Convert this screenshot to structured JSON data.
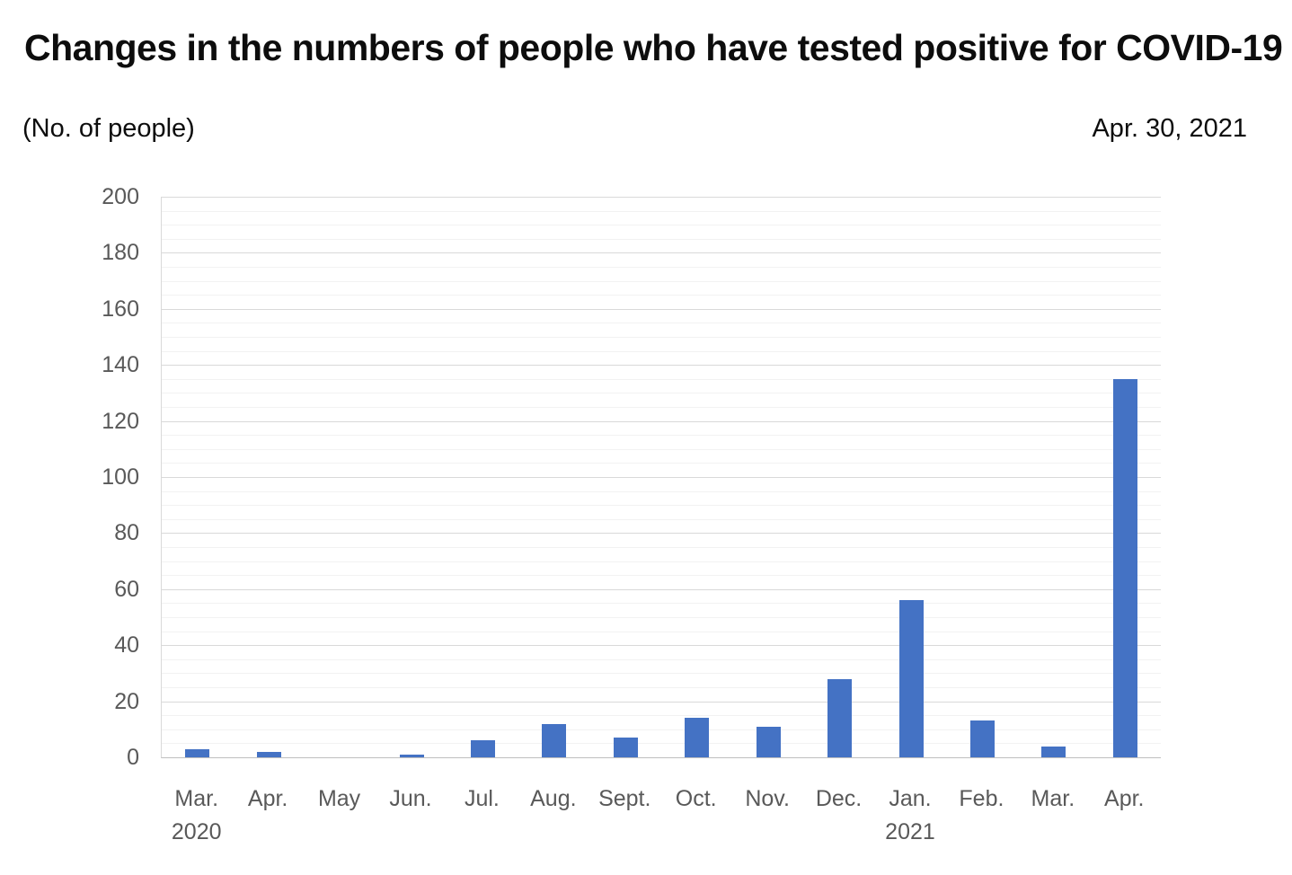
{
  "chart_data": {
    "type": "bar",
    "title": "Changes in the numbers of people who have tested positive for COVID-19",
    "unit_label": "(No. of people)",
    "date_label": "Apr. 30, 2021",
    "xlabel": "",
    "ylabel": "No. of people",
    "categories": [
      {
        "label": "Mar.",
        "year": "2020"
      },
      {
        "label": "Apr.",
        "year": ""
      },
      {
        "label": "May",
        "year": ""
      },
      {
        "label": "Jun.",
        "year": ""
      },
      {
        "label": "Jul.",
        "year": ""
      },
      {
        "label": "Aug.",
        "year": ""
      },
      {
        "label": "Sept.",
        "year": ""
      },
      {
        "label": "Oct.",
        "year": ""
      },
      {
        "label": "Nov.",
        "year": ""
      },
      {
        "label": "Dec.",
        "year": ""
      },
      {
        "label": "Jan.",
        "year": "2021"
      },
      {
        "label": "Feb.",
        "year": ""
      },
      {
        "label": "Mar.",
        "year": ""
      },
      {
        "label": "Apr.",
        "year": ""
      }
    ],
    "values": [
      3,
      2,
      0,
      1,
      6,
      12,
      7,
      14,
      11,
      28,
      56,
      13,
      4,
      135
    ],
    "ylim": [
      0,
      200
    ],
    "y_major_step": 20,
    "y_minor_step": 5,
    "grid": "on",
    "legend": "none",
    "colors": {
      "bar": "#4472c4",
      "gridline_major": "#d9d9d9",
      "gridline_minor": "#f2f2f2",
      "axis_line": "#bfbfbf",
      "tick_label": "#595959",
      "title_text": "#0d0d0d"
    }
  }
}
